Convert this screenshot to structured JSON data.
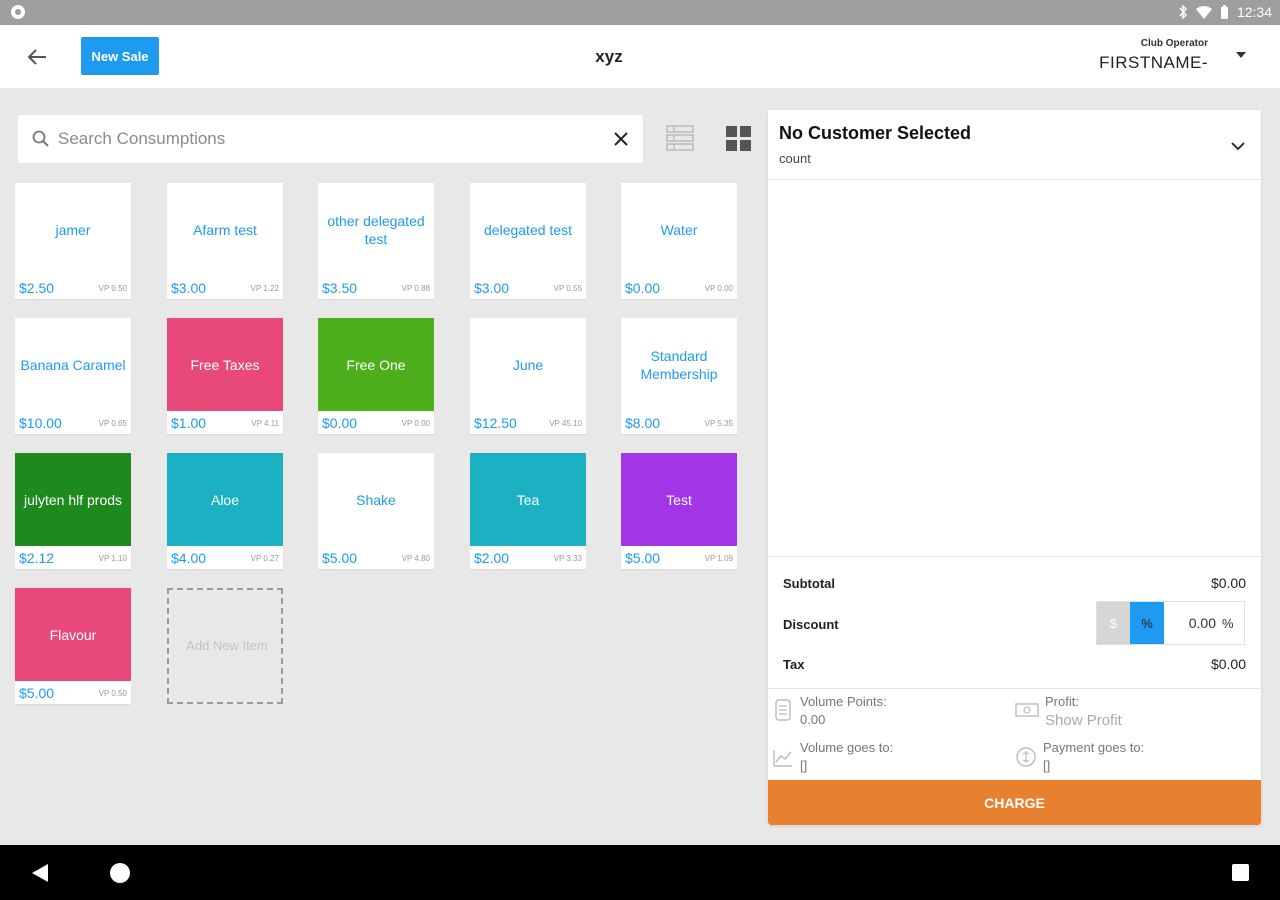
{
  "status_bar": {
    "time": "12:34"
  },
  "app_bar": {
    "new_sale_label": "New Sale",
    "title": "xyz",
    "operator_role": "Club Operator",
    "operator_name": "FIRSTNAME-"
  },
  "search": {
    "placeholder": "Search Consumptions",
    "value": ""
  },
  "tiles": [
    {
      "name": "jamer",
      "price": "$2.50",
      "vp": "VP 0.50",
      "color": "#ffffff"
    },
    {
      "name": "Afarm test",
      "price": "$3.00",
      "vp": "VP 1.22",
      "color": "#ffffff"
    },
    {
      "name": "other delegated test",
      "price": "$3.50",
      "vp": "VP 0.88",
      "color": "#ffffff"
    },
    {
      "name": "delegated test",
      "price": "$3.00",
      "vp": "VP 0.55",
      "color": "#ffffff"
    },
    {
      "name": "Water",
      "price": "$0.00",
      "vp": "VP 0.00",
      "color": "#ffffff"
    },
    {
      "name": "Banana Caramel",
      "price": "$10.00",
      "vp": "VP 0.65",
      "color": "#ffffff"
    },
    {
      "name": "Free Taxes",
      "price": "$1.00",
      "vp": "VP 4.11",
      "color": "#e8487a"
    },
    {
      "name": "Free One",
      "price": "$0.00",
      "vp": "VP 0.00",
      "color": "#4caf1b"
    },
    {
      "name": "June",
      "price": "$12.50",
      "vp": "VP 45.10",
      "color": "#ffffff"
    },
    {
      "name": "Standard Membership",
      "price": "$8.00",
      "vp": "VP 5.35",
      "color": "#ffffff"
    },
    {
      "name": "julyten hlf prods",
      "price": "$2.12",
      "vp": "VP 1.10",
      "color": "#1e8a1e"
    },
    {
      "name": "Aloe",
      "price": "$4.00",
      "vp": "VP 0.27",
      "color": "#1bb1c2"
    },
    {
      "name": "Shake",
      "price": "$5.00",
      "vp": "VP 4.80",
      "color": "#ffffff"
    },
    {
      "name": "Tea",
      "price": "$2.00",
      "vp": "VP 3.33",
      "color": "#1bb1c2"
    },
    {
      "name": "Test",
      "price": "$5.00",
      "vp": "VP 1.09",
      "color": "#a335e6"
    },
    {
      "name": "Flavour",
      "price": "$5.00",
      "vp": "VP 0.50",
      "color": "#e8487a"
    }
  ],
  "add_item_label": "Add New Item",
  "cart": {
    "customer_title": "No Customer Selected",
    "customer_subtitle": "count",
    "subtotal_label": "Subtotal",
    "subtotal_value": "$0.00",
    "discount_label": "Discount",
    "discount_dollar": "$",
    "discount_percent": "%",
    "discount_value": "0.00",
    "discount_unit": "%",
    "tax_label": "Tax",
    "tax_value": "$0.00",
    "volume_points_label": "Volume Points:",
    "volume_points_value": "0.00",
    "profit_label": "Profit:",
    "profit_value": "Show Profit",
    "volume_goes_label": "Volume goes to:",
    "volume_goes_value": "[]",
    "payment_goes_label": "Payment goes to:",
    "payment_goes_value": "[]",
    "charge_label": "CHARGE"
  },
  "colors": {
    "accent": "#1e9bf0",
    "charge": "#e8812f",
    "pink": "#e8487a",
    "green": "#4caf1b",
    "dark_green": "#1e8a1e",
    "teal": "#1bb1c2",
    "purple": "#a335e6"
  }
}
